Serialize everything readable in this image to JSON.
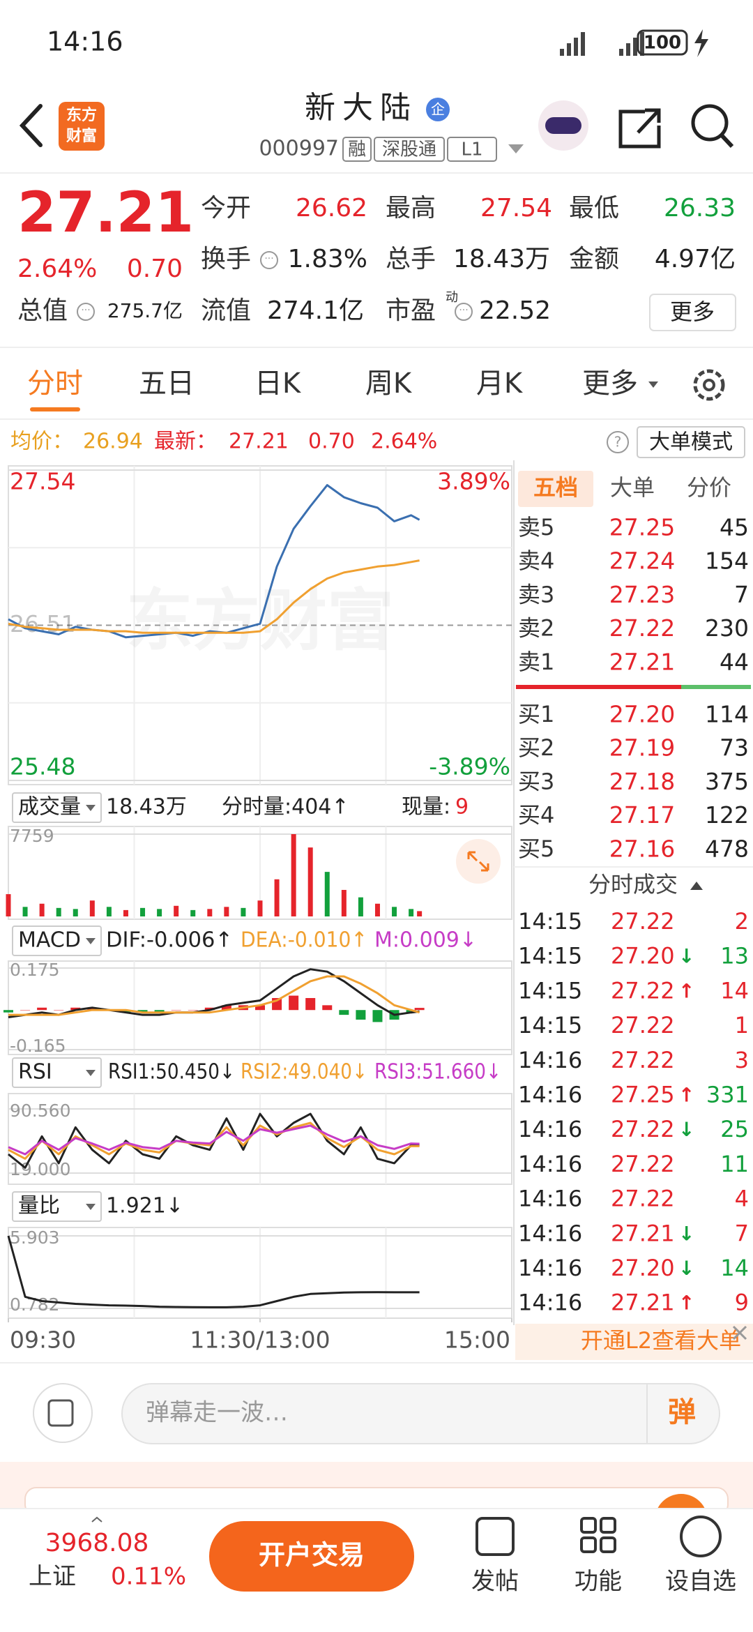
{
  "status_bar": {
    "time": "14:16",
    "battery": "100"
  },
  "header": {
    "logo": [
      "东方",
      "财富"
    ],
    "name": "新大陆",
    "badge": "企",
    "code": "000997",
    "tags": [
      "融",
      "深股通",
      "L1"
    ]
  },
  "quote": {
    "price": "27.21",
    "change_pct": "2.64%",
    "change": "0.70",
    "stats": [
      [
        {
          "label": "今开",
          "value": "26.62",
          "color": "up"
        },
        {
          "label": "最高",
          "value": "27.54",
          "color": "up"
        },
        {
          "label": "最低",
          "value": "26.33",
          "color": "down"
        }
      ],
      [
        {
          "label": "换手",
          "value": "1.83%",
          "info": true
        },
        {
          "label": "总手",
          "value": "18.43万"
        },
        {
          "label": "金额",
          "value": "4.97亿"
        }
      ],
      [
        {
          "label": "总值",
          "value": "275.7亿",
          "info": true
        },
        {
          "label": "流值",
          "value": "274.1亿"
        },
        {
          "label": "市盈",
          "value": "22.52",
          "info": true,
          "sup": "动"
        }
      ]
    ],
    "more": "更多"
  },
  "tabs": {
    "items": [
      "分时",
      "五日",
      "日K",
      "周K",
      "月K",
      "更多"
    ],
    "active": 0
  },
  "info_bar": {
    "avg_label": "均价：",
    "avg": "26.94",
    "last_label": "最新：",
    "last": "27.21",
    "change": "0.70",
    "change_pct": "2.64%",
    "mode_button": "大单模式"
  },
  "chart_data": [
    {
      "type": "line",
      "x": [
        0,
        8,
        16,
        24,
        32,
        40,
        48,
        56,
        64,
        72,
        80,
        88,
        96,
        104,
        112,
        120,
        128,
        136,
        144,
        152,
        160,
        168,
        176,
        184,
        192,
        196
      ],
      "xlim": [
        0,
        240
      ],
      "ylim": [
        25.48,
        27.54
      ],
      "yticks": [
        27.54,
        26.51,
        25.48
      ],
      "y2lim": [
        -3.89,
        3.89
      ],
      "y2ticks": [
        {
          "value": 3.89,
          "label": "3.89%"
        },
        {
          "value": -3.89,
          "label": "-3.89%"
        }
      ],
      "series": [
        {
          "color": "#3a6fb0",
          "values": [
            26.55,
            26.49,
            26.47,
            26.45,
            26.5,
            26.48,
            26.47,
            26.43,
            26.44,
            26.45,
            26.46,
            26.44,
            26.47,
            26.46,
            26.49,
            26.52,
            26.9,
            27.15,
            27.3,
            27.44,
            27.36,
            27.32,
            27.29,
            27.2,
            27.24,
            27.21
          ]
        },
        {
          "color": "#f0a030",
          "values": [
            26.52,
            26.5,
            26.49,
            26.48,
            26.48,
            26.48,
            26.47,
            26.47,
            26.46,
            26.46,
            26.46,
            26.46,
            26.46,
            26.46,
            26.46,
            26.47,
            26.55,
            26.66,
            26.75,
            26.82,
            26.86,
            26.88,
            26.9,
            26.91,
            26.93,
            26.94
          ]
        }
      ],
      "watermark": "东方财富"
    },
    {
      "type": "bar",
      "x": [
        0,
        8,
        16,
        24,
        32,
        40,
        48,
        56,
        64,
        72,
        80,
        88,
        96,
        104,
        112,
        120,
        128,
        136,
        144,
        152,
        160,
        168,
        176,
        184,
        192,
        196
      ],
      "xlim": [
        0,
        240
      ],
      "ylim": [
        0,
        7759
      ],
      "yticks": [
        7759
      ],
      "values": [
        2100,
        900,
        1200,
        800,
        700,
        1500,
        900,
        600,
        800,
        700,
        1000,
        600,
        700,
        900,
        800,
        1500,
        3500,
        7759,
        6500,
        4200,
        2500,
        1800,
        1200,
        900,
        700,
        500
      ],
      "bar_colors": [
        "up",
        "down",
        "up",
        "down",
        "down",
        "up",
        "down",
        "up",
        "down",
        "down",
        "up",
        "down",
        "up",
        "up",
        "down",
        "up",
        "up",
        "up",
        "up",
        "down",
        "up",
        "down",
        "up",
        "down",
        "down",
        "up"
      ]
    },
    {
      "type": "line",
      "x": [
        0,
        8,
        16,
        24,
        32,
        40,
        48,
        56,
        64,
        72,
        80,
        88,
        96,
        104,
        112,
        120,
        128,
        136,
        144,
        152,
        160,
        168,
        176,
        184,
        192,
        196
      ],
      "xlim": [
        0,
        240
      ],
      "ylim": [
        -0.165,
        0.175
      ],
      "yticks": [
        0.175,
        -0.165
      ],
      "series": [
        {
          "type": "bar",
          "values": [
            -0.01,
            0.0,
            0.01,
            0.0,
            0.01,
            0.01,
            0.0,
            -0.01,
            -0.01,
            -0.01,
            0.0,
            0.0,
            0.01,
            0.02,
            0.02,
            0.02,
            0.05,
            0.06,
            0.05,
            0.02,
            -0.02,
            -0.04,
            -0.05,
            -0.04,
            -0.01,
            0.009
          ]
        },
        {
          "color": "#222222",
          "values": [
            -0.03,
            -0.02,
            -0.01,
            -0.02,
            0.0,
            0.01,
            0.0,
            -0.01,
            -0.02,
            -0.02,
            -0.01,
            -0.01,
            0.0,
            0.02,
            0.03,
            0.04,
            0.09,
            0.14,
            0.17,
            0.16,
            0.12,
            0.07,
            0.02,
            -0.02,
            -0.01,
            -0.006
          ]
        },
        {
          "color": "#f0a030",
          "values": [
            -0.02,
            -0.02,
            -0.02,
            -0.02,
            -0.01,
            0.0,
            0.0,
            0.0,
            -0.01,
            -0.01,
            -0.01,
            -0.01,
            -0.01,
            0.0,
            0.01,
            0.02,
            0.04,
            0.08,
            0.12,
            0.14,
            0.14,
            0.11,
            0.07,
            0.02,
            0.0,
            -0.01
          ]
        }
      ]
    },
    {
      "type": "line",
      "x": [
        0,
        8,
        16,
        24,
        32,
        40,
        48,
        56,
        64,
        72,
        80,
        88,
        96,
        104,
        112,
        120,
        128,
        136,
        144,
        152,
        160,
        168,
        176,
        184,
        192,
        196
      ],
      "xlim": [
        0,
        240
      ],
      "ylim": [
        19,
        90.56
      ],
      "yticks": [
        {
          "value": 90.56,
          "label": "90.560"
        },
        {
          "value": 19,
          "label": "19.000"
        }
      ],
      "series": [
        {
          "color": "#222222",
          "values": [
            40,
            25,
            60,
            30,
            70,
            45,
            30,
            55,
            40,
            35,
            60,
            50,
            45,
            80,
            45,
            85,
            60,
            75,
            85,
            55,
            40,
            70,
            35,
            30,
            50,
            50.45
          ]
        },
        {
          "color": "#f0a030",
          "values": [
            45,
            35,
            55,
            40,
            60,
            50,
            40,
            52,
            45,
            42,
            55,
            52,
            50,
            70,
            50,
            72,
            62,
            70,
            75,
            58,
            48,
            60,
            45,
            40,
            49,
            49.04
          ]
        },
        {
          "color": "#c63cc6",
          "values": [
            48,
            40,
            55,
            45,
            58,
            52,
            45,
            53,
            48,
            46,
            55,
            53,
            52,
            65,
            55,
            68,
            64,
            68,
            72,
            62,
            54,
            60,
            50,
            46,
            52,
            51.66
          ]
        }
      ]
    },
    {
      "type": "line",
      "x": [
        0,
        8,
        16,
        24,
        32,
        40,
        48,
        56,
        64,
        72,
        80,
        88,
        96,
        104,
        112,
        120,
        128,
        136,
        144,
        152,
        160,
        168,
        176,
        184,
        192,
        196
      ],
      "xlim": [
        0,
        240
      ],
      "ylim": [
        0.782,
        5.903
      ],
      "yticks": [
        5.903,
        0.782
      ],
      "xticks": [
        {
          "value": 0,
          "label": "09:30"
        },
        {
          "value": 120,
          "label": "11:30/13:00"
        },
        {
          "value": 240,
          "label": "15:00"
        }
      ],
      "series": [
        {
          "color": "#222222",
          "values": [
            5.903,
            1.6,
            1.3,
            1.2,
            1.1,
            1.05,
            1.0,
            0.98,
            0.95,
            0.9,
            0.88,
            0.87,
            0.86,
            0.86,
            0.9,
            1.0,
            1.3,
            1.6,
            1.8,
            1.85,
            1.9,
            1.92,
            1.93,
            1.92,
            1.92,
            1.921
          ]
        }
      ]
    }
  ],
  "indicator_bars": [
    {
      "label": "成交量",
      "items": [
        {
          "text": "18.43万"
        },
        {
          "text": "分时量:404↑"
        },
        {
          "text": "现量:"
        },
        {
          "text": "9",
          "color": "red"
        }
      ]
    },
    {
      "label": "MACD",
      "items": [
        {
          "text": "DIF:-0.006↑"
        },
        {
          "text": "DEA:-0.010↑",
          "color": "orange"
        },
        {
          "text": "M:0.009↓",
          "color": "purple"
        }
      ]
    },
    {
      "label": "RSI",
      "items": [
        {
          "text": "RSI1:50.450↓"
        },
        {
          "text": "RSI2:49.040↓",
          "color": "orange"
        },
        {
          "text": "RSI3:51.660↓",
          "color": "purple"
        }
      ]
    },
    {
      "label": "量比",
      "items": [
        {
          "text": "1.921↓"
        }
      ]
    }
  ],
  "order_book": {
    "tabs": [
      "五档",
      "大单",
      "分价"
    ],
    "active": 0,
    "asks": [
      {
        "label": "卖5",
        "price": "27.25",
        "volume": "45"
      },
      {
        "label": "卖4",
        "price": "27.24",
        "volume": "154"
      },
      {
        "label": "卖3",
        "price": "27.23",
        "volume": "7"
      },
      {
        "label": "卖2",
        "price": "27.22",
        "volume": "230"
      },
      {
        "label": "卖1",
        "price": "27.21",
        "volume": "44"
      }
    ],
    "bids": [
      {
        "label": "买1",
        "price": "27.20",
        "volume": "114"
      },
      {
        "label": "买2",
        "price": "27.19",
        "volume": "73"
      },
      {
        "label": "买3",
        "price": "27.18",
        "volume": "375"
      },
      {
        "label": "买4",
        "price": "27.17",
        "volume": "122"
      },
      {
        "label": "买5",
        "price": "27.16",
        "volume": "478"
      }
    ],
    "trades_title": "分时成交",
    "trades": [
      {
        "time": "14:15",
        "price": "27.22",
        "volume": "2",
        "side": "buy"
      },
      {
        "time": "14:15",
        "price": "27.20",
        "arrow": "↓",
        "volume": "13",
        "side": "sell"
      },
      {
        "time": "14:15",
        "price": "27.22",
        "arrow": "↑",
        "volume": "14",
        "side": "buy"
      },
      {
        "time": "14:15",
        "price": "27.22",
        "volume": "1",
        "side": "buy"
      },
      {
        "time": "14:16",
        "price": "27.22",
        "volume": "3",
        "side": "buy"
      },
      {
        "time": "14:16",
        "price": "27.25",
        "arrow": "↑",
        "volume": "331",
        "side": "sell"
      },
      {
        "time": "14:16",
        "price": "27.22",
        "arrow": "↓",
        "volume": "25",
        "side": "sell"
      },
      {
        "time": "14:16",
        "price": "27.22",
        "volume": "11",
        "side": "sell"
      },
      {
        "time": "14:16",
        "price": "27.22",
        "volume": "4",
        "side": "buy"
      },
      {
        "time": "14:16",
        "price": "27.21",
        "arrow": "↓",
        "volume": "7",
        "side": "buy"
      },
      {
        "time": "14:16",
        "price": "27.20",
        "arrow": "↓",
        "volume": "14",
        "side": "sell"
      },
      {
        "time": "14:16",
        "price": "27.21",
        "arrow": "↑",
        "volume": "9",
        "side": "buy"
      }
    ],
    "banner": "开通L2查看大单"
  },
  "comment_bar": {
    "placeholder": "弹幕走一波…",
    "button": "弹"
  },
  "bottom_nav": {
    "index_name": "上证",
    "index_value": "3968.08",
    "index_change": "0.11%",
    "trade_button": "开户交易",
    "items": [
      "发帖",
      "功能",
      "设自选"
    ]
  }
}
